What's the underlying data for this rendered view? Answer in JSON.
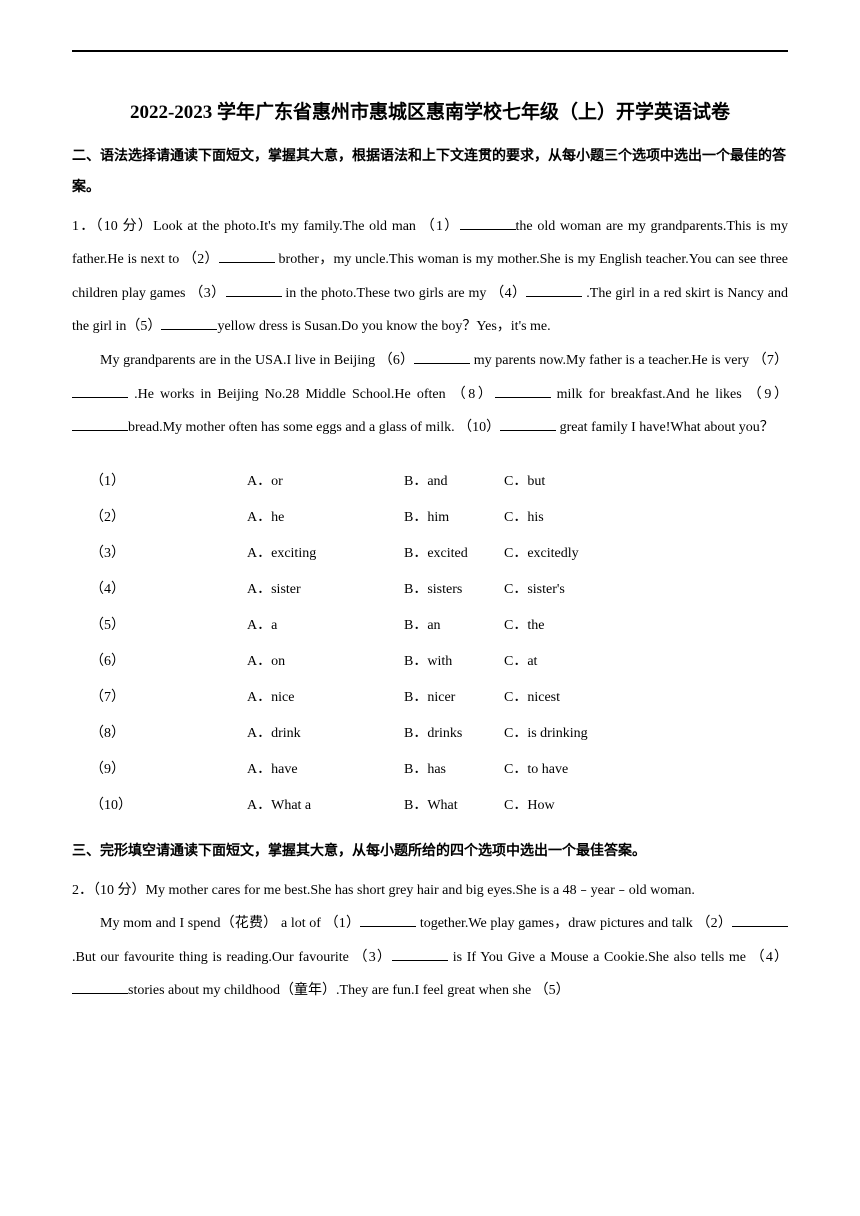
{
  "title": "2022-2023 学年广东省惠州市惠城区惠南学校七年级（上）开学英语试卷",
  "section2": {
    "header": "二、语法选择请通读下面短文，掌握其大意，根据语法和上下文连贯的要求，从每小题三个选项中选出一个最佳的答案。",
    "q1_prefix": "1．（10 分）Look at the photo.It's my family.The old man （1）",
    "q1_p1": "the old woman are my grandparents.This is my father.He is next to （2）",
    "q1_p2": " brother，my uncle.This woman is my mother.She is my English teacher.You can see three children play games （3）",
    "q1_p3": " in the photo.These two girls are my （4）",
    "q1_p4": " .The girl in a red skirt is Nancy and the girl in（5）",
    "q1_p5": "yellow dress is Susan.Do you know the boy？Yes，it's me.",
    "q1_para2_a": "My grandparents are in the USA.I live in Beijing （6）",
    "q1_para2_b": " my parents now.My father is a teacher.He is very （7）",
    "q1_para2_c": " .He works in Beijing No.28 Middle School.He often （8）",
    "q1_para2_d": " milk for breakfast.And he likes （9）",
    "q1_para2_e": "bread.My mother often has some eggs and a glass of milk. （10）",
    "q1_para2_f": " great family I have!What about you？"
  },
  "options": {
    "rows": [
      {
        "num": "（1）",
        "a": "A．or",
        "b": "B．and",
        "c": "C．but"
      },
      {
        "num": "（2）",
        "a": "A．he",
        "b": "B．him",
        "c": "C．his"
      },
      {
        "num": "（3）",
        "a": "A．exciting",
        "b": "B．excited",
        "c": "C．excitedly"
      },
      {
        "num": "（4）",
        "a": "A．sister",
        "b": "B．sisters",
        "c": "C．sister's"
      },
      {
        "num": "（5）",
        "a": "A．a",
        "b": "B．an",
        "c": "C．the"
      },
      {
        "num": "（6）",
        "a": "A．on",
        "b": "B．with",
        "c": "C．at"
      },
      {
        "num": "（7）",
        "a": "A．nice",
        "b": "B．nicer",
        "c": "C．nicest"
      },
      {
        "num": "（8）",
        "a": "A．drink",
        "b": "B．drinks",
        "c": "C．is drinking"
      },
      {
        "num": "（9）",
        "a": "A．have",
        "b": "B．has",
        "c": "C．to have"
      },
      {
        "num": "（10）",
        "a": "A．What a",
        "b": "B．What",
        "c": "C．How"
      }
    ]
  },
  "section3": {
    "header": "三、完形填空请通读下面短文，掌握其大意，从每小题所给的四个选项中选出一个最佳答案。",
    "q2_prefix": "2．（10 分）My mother cares for me best.She has short grey hair and big eyes.She is a 48﹣year﹣old woman.",
    "q2_para2_a": "My mom and I spend（花费） a lot of （1）",
    "q2_para2_b": " together.We play games，draw pictures and talk （2）",
    "q2_para2_c": " .But our favourite thing is reading.Our favourite （3）",
    "q2_para2_d": " is If You Give a Mouse a Cookie.She also tells me （4）",
    "q2_para2_e": "stories about my childhood（童年）.They are fun.I feel great when she （5）"
  }
}
